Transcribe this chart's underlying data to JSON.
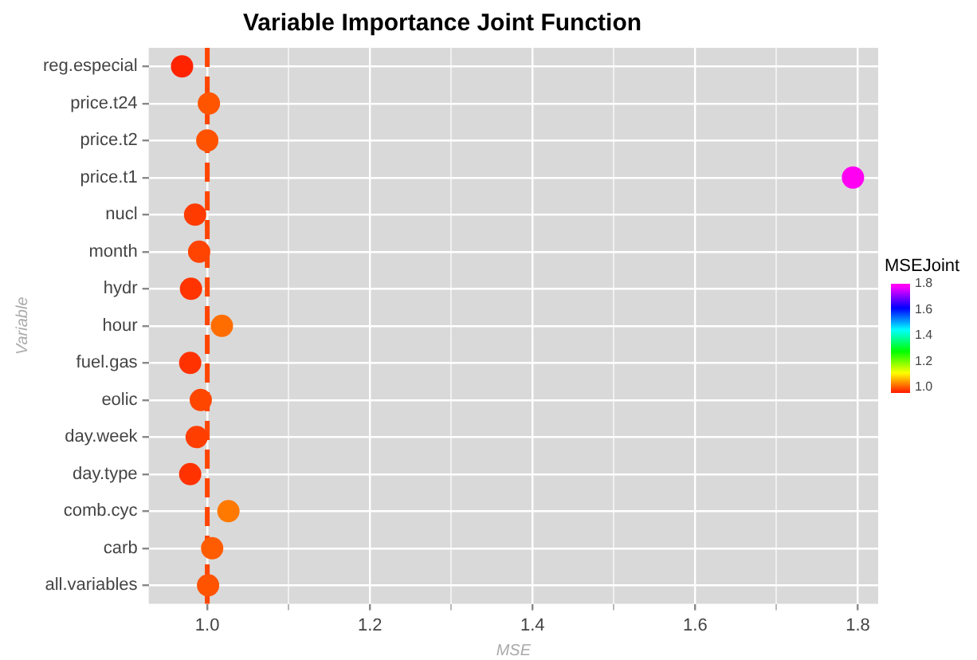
{
  "chart_data": {
    "type": "scatter",
    "title": "Variable Importance Joint Function",
    "xlabel": "MSE",
    "ylabel": "Variable",
    "clabel": "MSEJoint",
    "categories": [
      "reg.especial",
      "price.t24",
      "price.t2",
      "price.t1",
      "nucl",
      "month",
      "hydr",
      "hour",
      "fuel.gas",
      "eolic",
      "day.week",
      "day.type",
      "comb.cyc",
      "carb",
      "all.variables"
    ],
    "values": [
      0.969,
      1.002,
      1.0,
      1.794,
      0.985,
      0.99,
      0.98,
      1.018,
      0.979,
      0.992,
      0.987,
      0.979,
      1.026,
      1.006,
      1.001
    ],
    "cvalues": [
      0.969,
      1.002,
      1.0,
      1.794,
      0.985,
      0.99,
      0.98,
      1.018,
      0.979,
      0.992,
      0.987,
      0.979,
      1.026,
      1.006,
      1.001
    ],
    "clim": [
      0.96,
      1.8
    ],
    "cticks": [
      {
        "value": 1.0,
        "label": "1.0"
      },
      {
        "value": 1.2,
        "label": "1.2"
      },
      {
        "value": 1.4,
        "label": "1.4"
      },
      {
        "value": 1.6,
        "label": "1.6"
      },
      {
        "value": 1.8,
        "label": "1.8"
      }
    ],
    "orientation": "horizontal",
    "xlim": [
      0.928,
      1.825
    ],
    "xticks": [
      {
        "value": 1.0,
        "label": "1.0"
      },
      {
        "value": 1.1,
        "label": null
      },
      {
        "value": 1.2,
        "label": "1.2"
      },
      {
        "value": 1.3,
        "label": null
      },
      {
        "value": 1.4,
        "label": "1.4"
      },
      {
        "value": 1.5,
        "label": null
      },
      {
        "value": 1.6,
        "label": "1.6"
      },
      {
        "value": 1.7,
        "label": null
      },
      {
        "value": 1.8,
        "label": "1.8"
      }
    ],
    "ref_lines": [
      {
        "axis": "x",
        "value": 1.0,
        "color": "#ff4500",
        "line_style": "dashed"
      }
    ],
    "grid": true,
    "marker": "circle"
  }
}
